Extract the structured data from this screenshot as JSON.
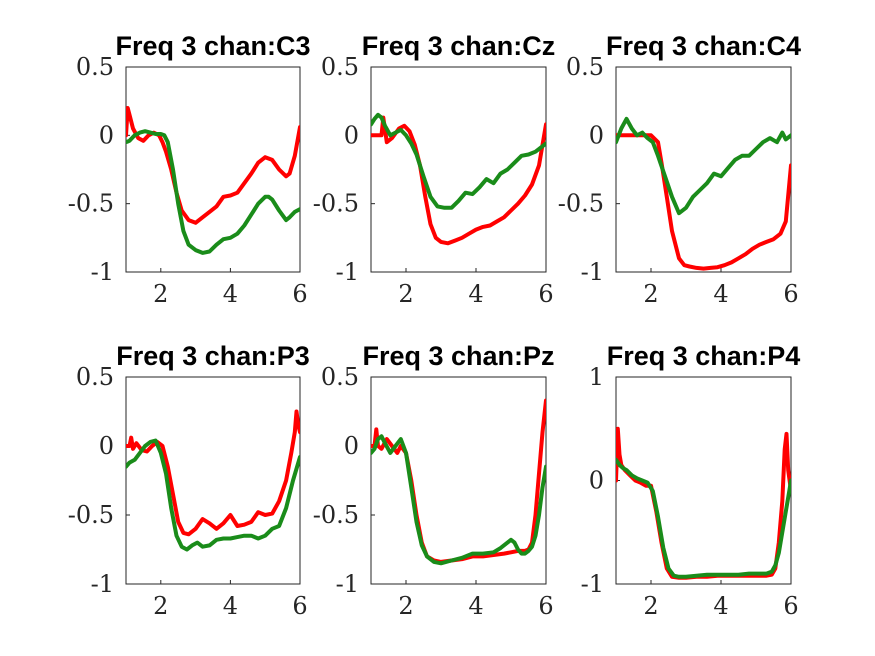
{
  "figure": {
    "background": "#ffffff"
  },
  "colors": {
    "red": "#ff0000",
    "green": "#1a8c1a",
    "axis": "#262626"
  },
  "chart_data": [
    {
      "type": "line",
      "title": "Freq 3 chan:C3",
      "xlim": [
        1,
        6
      ],
      "ylim": [
        -1,
        0.5
      ],
      "xticks": [
        "2",
        "4",
        "6"
      ],
      "yticks": [
        "0.5",
        "0",
        "-0.5",
        "-1"
      ],
      "series": [
        {
          "color": "red",
          "x": [
            1.0,
            1.05,
            1.1,
            1.2,
            1.35,
            1.5,
            1.65,
            1.8,
            1.95,
            2.05,
            2.15,
            2.3,
            2.45,
            2.6,
            2.8,
            3.0,
            3.2,
            3.4,
            3.6,
            3.8,
            4.0,
            4.2,
            4.4,
            4.6,
            4.8,
            5.0,
            5.2,
            5.4,
            5.6,
            5.7,
            5.85,
            6.0
          ],
          "y": [
            0.0,
            0.2,
            0.15,
            0.05,
            -0.02,
            -0.04,
            0.0,
            0.02,
            0.0,
            -0.05,
            -0.12,
            -0.25,
            -0.42,
            -0.55,
            -0.62,
            -0.64,
            -0.6,
            -0.56,
            -0.52,
            -0.45,
            -0.44,
            -0.42,
            -0.35,
            -0.28,
            -0.2,
            -0.16,
            -0.18,
            -0.25,
            -0.3,
            -0.28,
            -0.15,
            0.06
          ]
        },
        {
          "color": "green",
          "x": [
            1.0,
            1.1,
            1.25,
            1.4,
            1.55,
            1.7,
            1.85,
            2.0,
            2.1,
            2.2,
            2.35,
            2.5,
            2.65,
            2.8,
            3.0,
            3.2,
            3.4,
            3.6,
            3.8,
            4.0,
            4.2,
            4.4,
            4.6,
            4.8,
            5.0,
            5.1,
            5.2,
            5.4,
            5.6,
            5.7,
            5.85,
            6.0
          ],
          "y": [
            -0.05,
            -0.04,
            0.0,
            0.02,
            0.03,
            0.02,
            0.01,
            0.01,
            0.0,
            -0.05,
            -0.25,
            -0.5,
            -0.7,
            -0.8,
            -0.84,
            -0.86,
            -0.85,
            -0.8,
            -0.76,
            -0.75,
            -0.72,
            -0.66,
            -0.58,
            -0.5,
            -0.45,
            -0.45,
            -0.47,
            -0.55,
            -0.62,
            -0.6,
            -0.56,
            -0.54
          ]
        }
      ]
    },
    {
      "type": "line",
      "title": "Freq 3 chan:Cz",
      "xlim": [
        1,
        6
      ],
      "ylim": [
        -1,
        0.5
      ],
      "xticks": [
        "2",
        "4",
        "6"
      ],
      "yticks": [
        "0.5",
        "0",
        "-0.5",
        "-1"
      ],
      "series": [
        {
          "color": "red",
          "x": [
            1.0,
            1.2,
            1.3,
            1.35,
            1.45,
            1.6,
            1.8,
            1.95,
            2.1,
            2.25,
            2.4,
            2.55,
            2.7,
            2.85,
            3.0,
            3.2,
            3.4,
            3.6,
            3.8,
            4.0,
            4.2,
            4.4,
            4.6,
            4.8,
            5.0,
            5.2,
            5.4,
            5.6,
            5.8,
            6.0
          ],
          "y": [
            0.0,
            0.0,
            0.0,
            0.13,
            -0.05,
            -0.02,
            0.05,
            0.07,
            0.03,
            -0.07,
            -0.22,
            -0.45,
            -0.65,
            -0.75,
            -0.78,
            -0.79,
            -0.77,
            -0.75,
            -0.72,
            -0.69,
            -0.67,
            -0.66,
            -0.63,
            -0.6,
            -0.55,
            -0.5,
            -0.44,
            -0.36,
            -0.22,
            0.08
          ]
        },
        {
          "color": "green",
          "x": [
            1.0,
            1.1,
            1.2,
            1.3,
            1.4,
            1.55,
            1.7,
            1.85,
            2.0,
            2.15,
            2.3,
            2.5,
            2.7,
            2.9,
            3.1,
            3.3,
            3.5,
            3.7,
            3.9,
            4.1,
            4.3,
            4.5,
            4.7,
            4.9,
            5.1,
            5.3,
            5.5,
            5.7,
            5.85,
            6.0
          ],
          "y": [
            0.08,
            0.12,
            0.15,
            0.13,
            0.07,
            0.0,
            0.02,
            0.04,
            0.0,
            -0.06,
            -0.14,
            -0.3,
            -0.45,
            -0.52,
            -0.53,
            -0.53,
            -0.48,
            -0.42,
            -0.43,
            -0.38,
            -0.32,
            -0.35,
            -0.28,
            -0.25,
            -0.2,
            -0.15,
            -0.14,
            -0.12,
            -0.09,
            -0.06
          ]
        }
      ]
    },
    {
      "type": "line",
      "title": "Freq 3 chan:C4",
      "xlim": [
        1,
        6
      ],
      "ylim": [
        -1,
        0.5
      ],
      "xticks": [
        "2",
        "4",
        "6"
      ],
      "yticks": [
        "0.5",
        "0",
        "-0.5",
        "-1"
      ],
      "series": [
        {
          "color": "red",
          "x": [
            1.0,
            1.5,
            2.0,
            2.2,
            2.3,
            2.45,
            2.6,
            2.8,
            2.95,
            3.1,
            3.3,
            3.5,
            3.7,
            3.9,
            4.1,
            4.3,
            4.5,
            4.7,
            4.9,
            5.1,
            5.3,
            5.5,
            5.7,
            5.85,
            6.0
          ],
          "y": [
            0.0,
            0.0,
            0.0,
            -0.05,
            -0.2,
            -0.45,
            -0.7,
            -0.9,
            -0.95,
            -0.96,
            -0.97,
            -0.975,
            -0.97,
            -0.965,
            -0.95,
            -0.93,
            -0.9,
            -0.87,
            -0.83,
            -0.8,
            -0.78,
            -0.76,
            -0.72,
            -0.63,
            -0.22
          ]
        },
        {
          "color": "green",
          "x": [
            1.0,
            1.15,
            1.3,
            1.45,
            1.6,
            1.75,
            1.9,
            2.05,
            2.2,
            2.4,
            2.6,
            2.8,
            3.0,
            3.2,
            3.4,
            3.6,
            3.8,
            4.0,
            4.2,
            4.4,
            4.6,
            4.8,
            5.0,
            5.2,
            5.4,
            5.6,
            5.75,
            5.85,
            6.0
          ],
          "y": [
            -0.05,
            0.05,
            0.12,
            0.05,
            0.0,
            0.02,
            -0.02,
            -0.05,
            -0.15,
            -0.3,
            -0.45,
            -0.57,
            -0.53,
            -0.45,
            -0.4,
            -0.35,
            -0.28,
            -0.3,
            -0.24,
            -0.18,
            -0.15,
            -0.15,
            -0.1,
            -0.05,
            -0.02,
            -0.05,
            0.02,
            -0.03,
            0.0
          ]
        }
      ]
    },
    {
      "type": "line",
      "title": "Freq 3 chan:P3",
      "xlim": [
        1,
        6
      ],
      "ylim": [
        -1,
        0.5
      ],
      "xticks": [
        "2",
        "4",
        "6"
      ],
      "yticks": [
        "0.5",
        "0",
        "-0.5",
        "-1"
      ],
      "series": [
        {
          "color": "red",
          "x": [
            1.0,
            1.1,
            1.15,
            1.2,
            1.3,
            1.45,
            1.6,
            1.75,
            1.9,
            2.05,
            2.2,
            2.35,
            2.5,
            2.65,
            2.8,
            3.0,
            3.2,
            3.4,
            3.6,
            3.8,
            4.0,
            4.2,
            4.4,
            4.6,
            4.8,
            5.0,
            5.2,
            5.4,
            5.6,
            5.75,
            5.85,
            5.9,
            5.95,
            6.0
          ],
          "y": [
            0.0,
            0.0,
            0.06,
            -0.02,
            0.02,
            -0.03,
            -0.04,
            0.0,
            0.03,
            0.0,
            -0.15,
            -0.35,
            -0.55,
            -0.63,
            -0.64,
            -0.6,
            -0.53,
            -0.56,
            -0.6,
            -0.56,
            -0.5,
            -0.58,
            -0.57,
            -0.55,
            -0.48,
            -0.5,
            -0.49,
            -0.4,
            -0.25,
            -0.05,
            0.1,
            0.25,
            0.15,
            0.1
          ]
        },
        {
          "color": "green",
          "x": [
            1.0,
            1.1,
            1.25,
            1.4,
            1.55,
            1.7,
            1.85,
            2.0,
            2.15,
            2.3,
            2.45,
            2.6,
            2.75,
            2.9,
            3.05,
            3.2,
            3.4,
            3.6,
            3.8,
            4.0,
            4.2,
            4.4,
            4.6,
            4.8,
            5.0,
            5.2,
            5.4,
            5.6,
            5.8,
            6.0
          ],
          "y": [
            -0.15,
            -0.12,
            -0.1,
            -0.05,
            0.0,
            0.03,
            0.04,
            -0.05,
            -0.2,
            -0.45,
            -0.65,
            -0.73,
            -0.75,
            -0.72,
            -0.7,
            -0.73,
            -0.72,
            -0.68,
            -0.67,
            -0.67,
            -0.66,
            -0.65,
            -0.65,
            -0.67,
            -0.65,
            -0.6,
            -0.58,
            -0.45,
            -0.25,
            -0.08
          ]
        }
      ]
    },
    {
      "type": "line",
      "title": "Freq 3 chan:Pz",
      "xlim": [
        1,
        6
      ],
      "ylim": [
        -1,
        0.5
      ],
      "xticks": [
        "2",
        "4",
        "6"
      ],
      "yticks": [
        "0.5",
        "0",
        "-0.5",
        "-1"
      ],
      "series": [
        {
          "color": "red",
          "x": [
            1.0,
            1.1,
            1.15,
            1.2,
            1.3,
            1.45,
            1.6,
            1.75,
            1.85,
            2.0,
            2.15,
            2.3,
            2.45,
            2.6,
            2.8,
            3.0,
            3.3,
            3.6,
            3.9,
            4.2,
            4.5,
            4.8,
            5.0,
            5.2,
            5.4,
            5.5,
            5.6,
            5.7,
            5.8,
            5.9,
            6.0
          ],
          "y": [
            0.0,
            0.0,
            0.12,
            0.0,
            -0.02,
            0.05,
            0.0,
            -0.05,
            0.0,
            -0.05,
            -0.25,
            -0.5,
            -0.7,
            -0.8,
            -0.83,
            -0.84,
            -0.83,
            -0.82,
            -0.8,
            -0.8,
            -0.79,
            -0.78,
            -0.77,
            -0.76,
            -0.76,
            -0.75,
            -0.7,
            -0.5,
            -0.2,
            0.1,
            0.33
          ]
        },
        {
          "color": "green",
          "x": [
            1.0,
            1.1,
            1.2,
            1.3,
            1.4,
            1.55,
            1.7,
            1.85,
            2.0,
            2.15,
            2.3,
            2.45,
            2.6,
            2.8,
            3.0,
            3.3,
            3.6,
            3.9,
            4.2,
            4.5,
            4.7,
            4.9,
            5.0,
            5.1,
            5.2,
            5.3,
            5.4,
            5.5,
            5.6,
            5.7,
            5.8,
            5.9,
            6.0
          ],
          "y": [
            -0.05,
            -0.02,
            0.05,
            0.07,
            0.02,
            -0.05,
            0.0,
            0.05,
            -0.05,
            -0.3,
            -0.55,
            -0.72,
            -0.8,
            -0.84,
            -0.85,
            -0.83,
            -0.81,
            -0.78,
            -0.78,
            -0.77,
            -0.74,
            -0.7,
            -0.68,
            -0.7,
            -0.75,
            -0.78,
            -0.78,
            -0.76,
            -0.73,
            -0.65,
            -0.5,
            -0.3,
            -0.15
          ]
        }
      ]
    },
    {
      "type": "line",
      "title": "Freq 3 chan:P4",
      "xlim": [
        1,
        6
      ],
      "ylim": [
        -1,
        1
      ],
      "xticks": [
        "2",
        "4",
        "6"
      ],
      "yticks": [
        "1",
        "0",
        "-1"
      ],
      "series": [
        {
          "color": "red",
          "x": [
            1.0,
            1.05,
            1.1,
            1.15,
            1.25,
            1.4,
            1.55,
            1.7,
            1.85,
            2.0,
            2.15,
            2.3,
            2.45,
            2.6,
            2.8,
            3.0,
            3.3,
            3.6,
            3.9,
            4.2,
            4.5,
            4.8,
            5.1,
            5.3,
            5.45,
            5.55,
            5.65,
            5.75,
            5.82,
            5.87,
            5.92,
            6.0
          ],
          "y": [
            0.0,
            0.5,
            0.25,
            0.15,
            0.1,
            0.05,
            0.0,
            -0.02,
            -0.05,
            -0.05,
            -0.3,
            -0.6,
            -0.85,
            -0.93,
            -0.94,
            -0.94,
            -0.93,
            -0.93,
            -0.92,
            -0.92,
            -0.92,
            -0.92,
            -0.92,
            -0.92,
            -0.91,
            -0.85,
            -0.6,
            -0.2,
            0.3,
            0.45,
            0.1,
            -0.1
          ]
        },
        {
          "color": "green",
          "x": [
            1.0,
            1.1,
            1.2,
            1.3,
            1.45,
            1.6,
            1.75,
            1.9,
            2.05,
            2.2,
            2.35,
            2.5,
            2.65,
            2.8,
            3.0,
            3.3,
            3.6,
            3.9,
            4.2,
            4.5,
            4.8,
            5.1,
            5.3,
            5.45,
            5.55,
            5.65,
            5.75,
            5.85,
            5.95,
            6.0
          ],
          "y": [
            0.2,
            0.15,
            0.12,
            0.1,
            0.05,
            0.02,
            0.0,
            -0.02,
            -0.1,
            -0.35,
            -0.65,
            -0.85,
            -0.92,
            -0.93,
            -0.93,
            -0.92,
            -0.91,
            -0.91,
            -0.91,
            -0.91,
            -0.9,
            -0.9,
            -0.9,
            -0.88,
            -0.82,
            -0.7,
            -0.5,
            -0.3,
            -0.1,
            0.0
          ]
        }
      ]
    }
  ]
}
